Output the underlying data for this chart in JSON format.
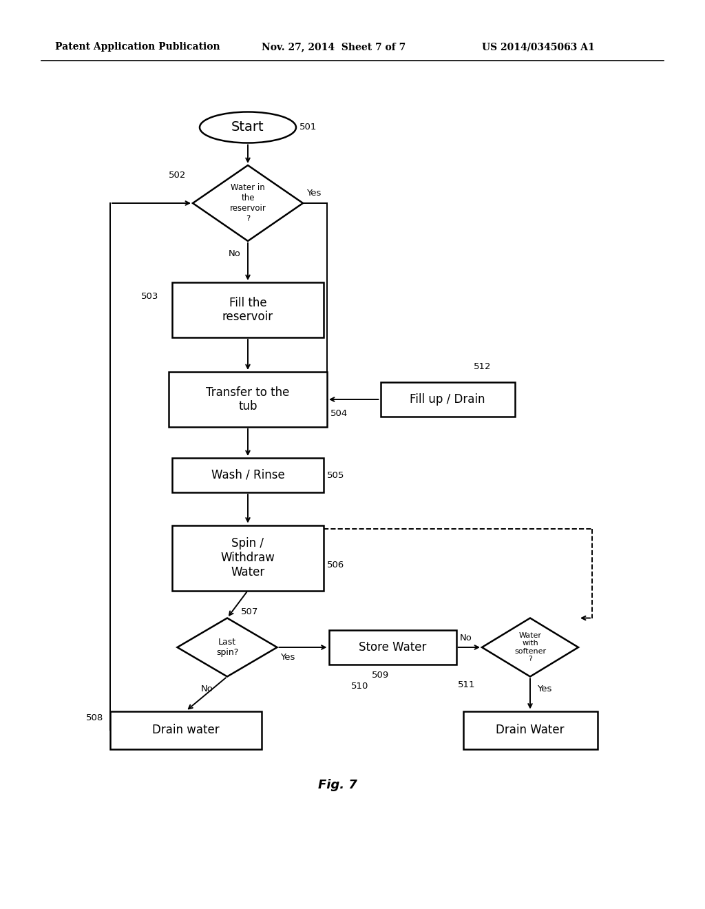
{
  "bg_color": "#ffffff",
  "header_left": "Patent Application Publication",
  "header_mid": "Nov. 27, 2014  Sheet 7 of 7",
  "header_right": "US 2014/0345063 A1",
  "fig_label": "Fig. 7"
}
